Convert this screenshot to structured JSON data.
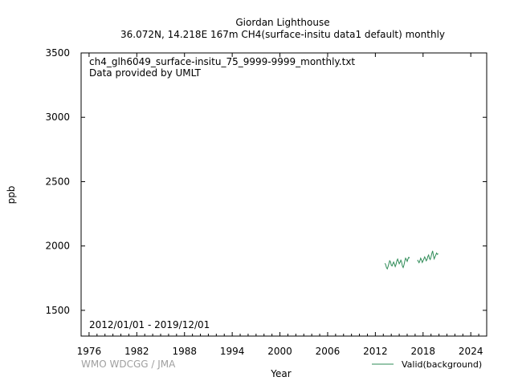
{
  "chart_data": {
    "type": "line",
    "title": "Giordan Lighthouse",
    "subtitle": "36.072N, 14.218E 167m    CH4(surface-insitu data1 default) monthly",
    "file_label": "ch4_glh6049_surface-insitu_75_9999-9999_monthly.txt",
    "provider_label": "Data provided by UMLT",
    "date_range_label": "2012/01/01 - 2019/12/01",
    "credit_label": "WMO WDCGG / JMA",
    "xlabel": "Year",
    "ylabel": "ppb",
    "xlim": [
      1975,
      2026
    ],
    "ylim": [
      1300,
      3500
    ],
    "x_ticks": [
      1976,
      1982,
      1988,
      1994,
      2000,
      2006,
      2012,
      2018,
      2024
    ],
    "y_ticks": [
      1500,
      2000,
      2500,
      3000,
      3500
    ],
    "legend_position": "bottom-right",
    "grid": false,
    "series": [
      {
        "name": "Valid(background)",
        "color": "#2e8b57",
        "segments": [
          {
            "x": [
              2013.2,
              2013.3,
              2013.4,
              2013.5,
              2013.6,
              2013.7,
              2013.8,
              2013.9,
              2014.0,
              2014.1,
              2014.2,
              2014.3,
              2014.4,
              2014.5,
              2014.6,
              2014.7,
              2014.8,
              2014.9,
              2015.0,
              2015.1,
              2015.2,
              2015.3,
              2015.4,
              2015.5,
              2015.6,
              2015.7,
              2015.8,
              2015.9,
              2016.0,
              2016.1,
              2016.2,
              2016.3
            ],
            "y": [
              1865,
              1855,
              1832,
              1822,
              1840,
              1862,
              1885,
              1878,
              1850,
              1845,
              1862,
              1875,
              1860,
              1840,
              1855,
              1885,
              1898,
              1880,
              1862,
              1872,
              1890,
              1878,
              1845,
              1832,
              1852,
              1882,
              1905,
              1895,
              1880,
              1900,
              1912,
              1905
            ]
          },
          {
            "x": [
              2017.3,
              2017.4,
              2017.5,
              2017.6,
              2017.7,
              2017.8,
              2017.9,
              2018.0,
              2018.1,
              2018.2,
              2018.3,
              2018.4,
              2018.5,
              2018.6,
              2018.7,
              2018.8,
              2018.9,
              2019.0,
              2019.1,
              2019.2,
              2019.3,
              2019.4,
              2019.5,
              2019.6,
              2019.7,
              2019.8,
              2019.9
            ],
            "y": [
              1892,
              1880,
              1870,
              1885,
              1905,
              1892,
              1872,
              1885,
              1900,
              1915,
              1900,
              1885,
              1895,
              1918,
              1930,
              1905,
              1895,
              1915,
              1942,
              1962,
              1925,
              1900,
              1915,
              1930,
              1945,
              1935,
              1940
            ]
          }
        ]
      }
    ]
  }
}
